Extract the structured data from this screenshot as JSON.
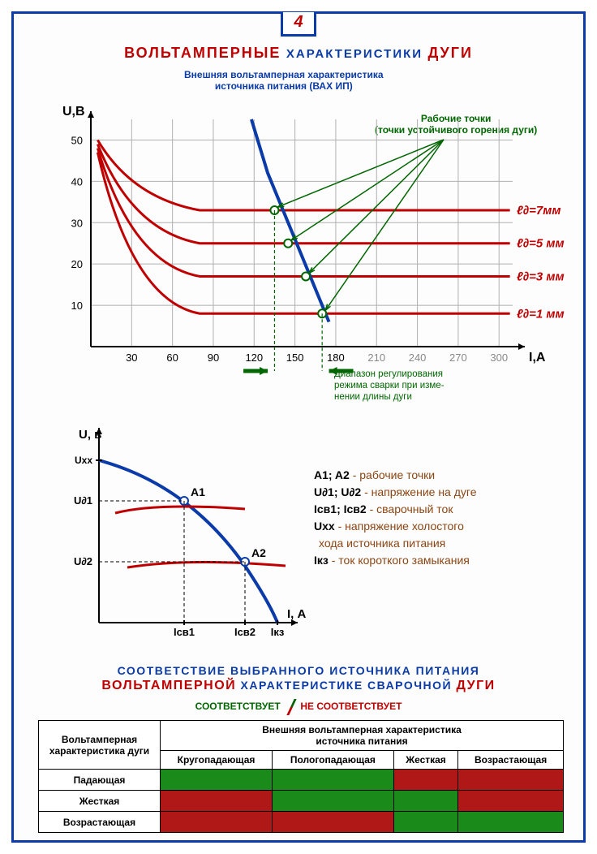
{
  "page_number": "4",
  "title": {
    "red1": "ВОЛЬТАМПЕРНЫЕ",
    "blue": "ХАРАКТЕРИСТИКИ",
    "red2": "ДУГИ"
  },
  "chart1": {
    "caption_line1": "Внешняя вольтамперная характеристика",
    "caption_line2": "источника питания (ВАХ ИП)",
    "ylabel": "U,В",
    "xlabel": "I,А",
    "working_points_caption_l1": "Рабочие точки",
    "working_points_caption_l2": "(точки устойчивого горения дуги)",
    "y_ticks": [
      10,
      20,
      30,
      40,
      50
    ],
    "x_ticks": [
      30,
      60,
      90,
      120,
      150,
      180,
      210,
      240,
      270,
      300
    ],
    "ylim": [
      0,
      55
    ],
    "xlim": [
      0,
      310
    ],
    "grid_color": "#b0b0b0",
    "axis_color": "#000000",
    "arc_curves": [
      {
        "label": "ℓ∂=7мм",
        "color": "#c00000",
        "plateau_y": 33,
        "start_y": 50
      },
      {
        "label": "ℓ∂=5 мм",
        "color": "#c00000",
        "plateau_y": 25,
        "start_y": 49
      },
      {
        "label": "ℓ∂=3 мм",
        "color": "#c00000",
        "plateau_y": 17,
        "start_y": 48
      },
      {
        "label": "ℓ∂=1 мм",
        "color": "#c00000",
        "plateau_y": 8,
        "start_y": 47
      }
    ],
    "source_curve": {
      "color": "#0a3ba8",
      "points": [
        [
          118,
          55
        ],
        [
          130,
          42
        ],
        [
          145,
          30
        ],
        [
          160,
          18
        ],
        [
          175,
          6
        ]
      ]
    },
    "working_point_color": "#ffffff",
    "working_point_stroke": "#006600",
    "arrow_color": "#006600",
    "range_arrow_y": 0,
    "range_x1": 130,
    "range_x2": 175,
    "range_caption_l1": "Диапазон регулирования",
    "range_caption_l2": "режима сварки при изме-",
    "range_caption_l3": "нении длины дуги"
  },
  "chart2": {
    "ylabel": "U, в",
    "xlabel": "I, А",
    "Uxx": "Uxx",
    "Ud1": "U∂1",
    "Ud2": "U∂2",
    "A1": "A1",
    "A2": "A2",
    "Isv1": "Iсв1",
    "Isv2": "Iсв2",
    "Ikz": "Iкз",
    "source_color": "#0a3ba8",
    "arc_color": "#c00000",
    "point_fill": "#ffffff",
    "point_stroke": "#0a3ba8"
  },
  "legend2": {
    "l1_k": "A1; A2",
    "l1_t": " - рабочие точки",
    "l2_k": "U∂1; U∂2",
    "l2_t": " - напряжение на дуге",
    "l3_k": "Iсв1; Iсв2",
    "l3_t": " - сварочный ток",
    "l4_k": "Uxx",
    "l4_t": " - напряжение холостого",
    "l4_t2": "хода источника питания",
    "l5_k": "Iкз",
    "l5_t": " - ток короткого замыкания"
  },
  "section2": {
    "l1": "СООТВЕТСТВИЕ ВЫБРАННОГО ИСТОЧНИКА ПИТАНИЯ",
    "l2a": "ВОЛЬТАМПЕРНОЙ",
    "l2b": " ХАРАКТЕРИСТИКЕ СВАРОЧНОЙ ",
    "l2c": "ДУГИ",
    "match_ok": "СООТВЕТСТВУЕТ",
    "match_no": "НЕ СООТВЕТСТВУЕТ"
  },
  "table": {
    "row_header_title_l1": "Вольтамперная",
    "row_header_title_l2": "характеристика дуги",
    "col_header_l1": "Внешняя вольтамперная характеристика",
    "col_header_l2": "источника питания",
    "cols": [
      "Кругопадающая",
      "Пологопадающая",
      "Жесткая",
      "Возрастающая"
    ],
    "rows": [
      "Падающая",
      "Жесткая",
      "Возрастающая"
    ],
    "cells": [
      [
        "ok",
        "ok",
        "no",
        "no"
      ],
      [
        "no",
        "ok",
        "ok",
        "no"
      ],
      [
        "no",
        "no",
        "ok",
        "ok"
      ]
    ],
    "ok_color": "#1a8a1a",
    "no_color": "#b01818"
  }
}
